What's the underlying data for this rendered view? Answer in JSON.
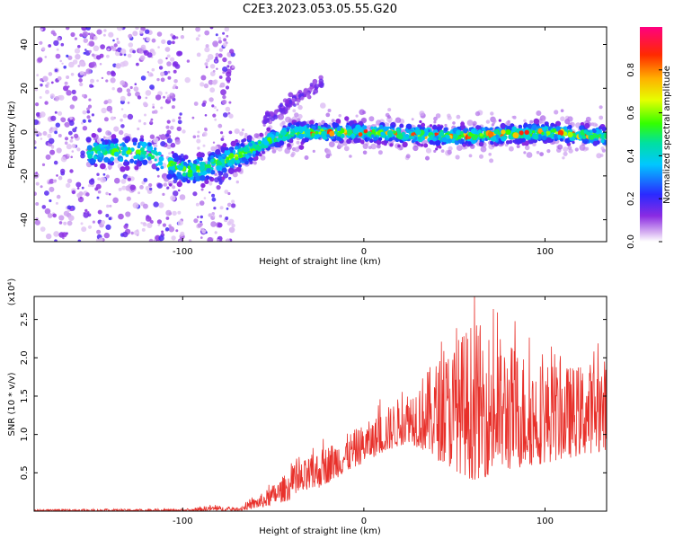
{
  "title": "C2E3.2023.053.05.55.G20",
  "chart_data": [
    {
      "type": "heatmap",
      "xlabel": "Height of straight line (km)",
      "ylabel": "Frequency (Hz)",
      "xlim": [
        -182,
        134
      ],
      "ylim": [
        -50,
        48
      ],
      "xticks": [
        -100,
        0,
        100
      ],
      "yticks": [
        -40,
        -20,
        0,
        20,
        40
      ],
      "colorbar": {
        "label": "Normalized spectral amplitude",
        "range": [
          0,
          1
        ],
        "ticks": [
          0.0,
          0.2,
          0.4,
          0.6,
          0.8
        ],
        "tick_labels": [
          "0.0",
          "0.2",
          "0.4",
          "0.6",
          "0.8"
        ],
        "colormap": "rainbow (purple-blue-cyan-green-yellow-red-magenta)"
      },
      "trace": [
        {
          "x": -152,
          "y": -9
        },
        {
          "x": -120,
          "y": -9
        },
        {
          "x": -108,
          "y": -15
        },
        {
          "x": -95,
          "y": -18
        },
        {
          "x": -80,
          "y": -14
        },
        {
          "x": -70,
          "y": -11
        },
        {
          "x": -55,
          "y": -5
        },
        {
          "x": -40,
          "y": 0
        },
        {
          "x": -25,
          "y": 0
        },
        {
          "x": 0,
          "y": 0
        },
        {
          "x": 50,
          "y": -2
        },
        {
          "x": 100,
          "y": 0
        },
        {
          "x": 134,
          "y": -2
        }
      ],
      "grid": false
    },
    {
      "type": "line",
      "xlabel": "Height of straight line (km)",
      "ylabel": "SNR (10 * v/v)",
      "y_multiplier": "(x10⁴)",
      "xlim": [
        -182,
        134
      ],
      "ylim": [
        0,
        2.8
      ],
      "xticks": [
        -100,
        0,
        100
      ],
      "yticks": [
        0.5,
        1.0,
        1.5,
        2.0,
        2.5
      ],
      "color": "#e8302a",
      "envelope": [
        {
          "x": -182,
          "lo": 0.0,
          "hi": 0.02
        },
        {
          "x": -95,
          "lo": 0.0,
          "hi": 0.03
        },
        {
          "x": -85,
          "lo": 0.0,
          "hi": 0.08
        },
        {
          "x": -70,
          "lo": 0.0,
          "hi": 0.04
        },
        {
          "x": -55,
          "lo": 0.05,
          "hi": 0.25
        },
        {
          "x": -40,
          "lo": 0.15,
          "hi": 0.55
        },
        {
          "x": -25,
          "lo": 0.3,
          "hi": 0.8
        },
        {
          "x": -10,
          "lo": 0.5,
          "hi": 1.0
        },
        {
          "x": 5,
          "lo": 0.7,
          "hi": 1.2
        },
        {
          "x": 25,
          "lo": 0.9,
          "hi": 1.6
        },
        {
          "x": 45,
          "lo": 0.6,
          "hi": 2.1
        },
        {
          "x": 60,
          "lo": 0.4,
          "hi": 2.5
        },
        {
          "x": 75,
          "lo": 0.5,
          "hi": 2.3
        },
        {
          "x": 95,
          "lo": 0.6,
          "hi": 2.0
        },
        {
          "x": 115,
          "lo": 0.7,
          "hi": 1.9
        },
        {
          "x": 134,
          "lo": 0.8,
          "hi": 2.0
        }
      ],
      "grid": false
    }
  ]
}
